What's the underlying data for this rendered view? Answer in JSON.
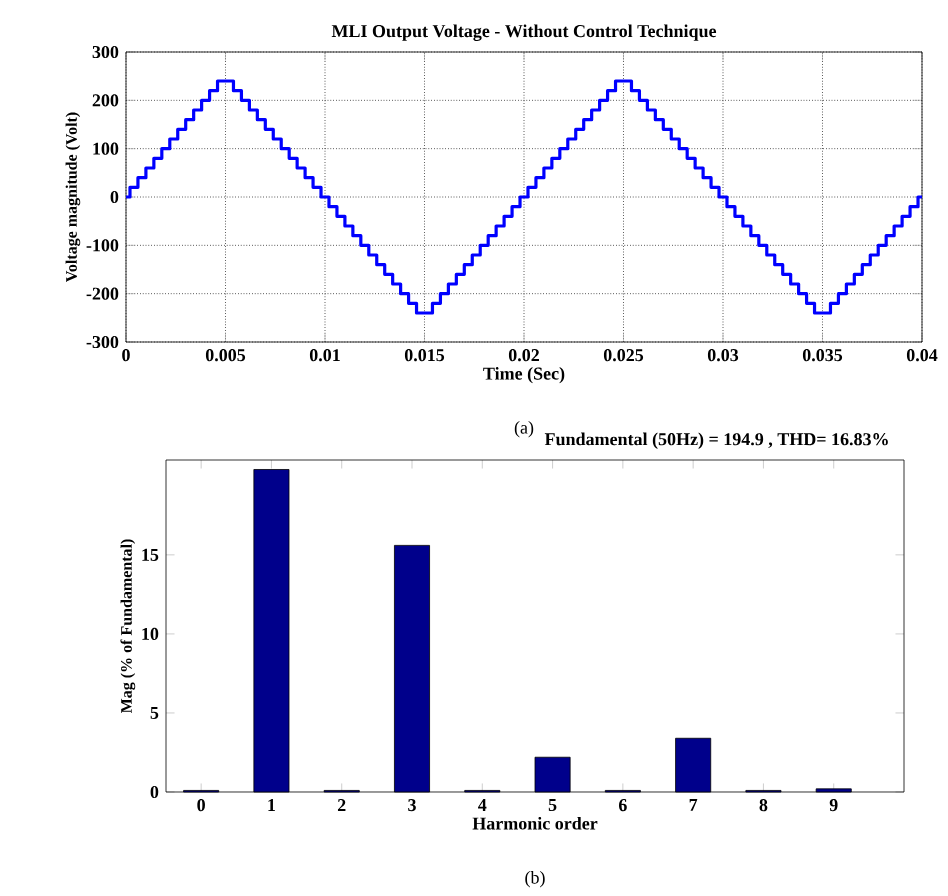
{
  "chart_data": [
    {
      "type": "step",
      "title": "MLI Output Voltage - Without Control Technique",
      "xlabel": "Time (Sec)",
      "ylabel": "Voltage magnitude (Volt)",
      "annotations": [
        "(a)"
      ],
      "grid": true,
      "color": "#0000ff",
      "x": [
        0,
        0.0002,
        0.0006,
        0.001,
        0.0014,
        0.0018,
        0.0022,
        0.0026,
        0.003,
        0.0034,
        0.0038,
        0.0042,
        0.0046,
        0.0054,
        0.0058,
        0.0062,
        0.0066,
        0.007,
        0.0074,
        0.0078,
        0.0082,
        0.0086,
        0.009,
        0.0094,
        0.0098,
        0.0102,
        0.0106,
        0.011,
        0.0114,
        0.0118,
        0.0122,
        0.0126,
        0.013,
        0.0134,
        0.0138,
        0.0142,
        0.0146,
        0.0154,
        0.0158,
        0.0162,
        0.0166,
        0.017,
        0.0174,
        0.0178,
        0.0182,
        0.0186,
        0.019,
        0.0194,
        0.0198,
        0.0202,
        0.0206,
        0.021,
        0.0214,
        0.0218,
        0.0222,
        0.0226,
        0.023,
        0.0234,
        0.0238,
        0.0242,
        0.0246,
        0.0254,
        0.0258,
        0.0262,
        0.0266,
        0.027,
        0.0274,
        0.0278,
        0.0282,
        0.0286,
        0.029,
        0.0294,
        0.0298,
        0.0302,
        0.0306,
        0.031,
        0.0314,
        0.0318,
        0.0322,
        0.0326,
        0.033,
        0.0334,
        0.0338,
        0.0342,
        0.0346,
        0.0354,
        0.0358,
        0.0362,
        0.0366,
        0.037,
        0.0374,
        0.0378,
        0.0382,
        0.0386,
        0.039,
        0.0394,
        0.0398,
        0.04
      ],
      "values": [
        0,
        20,
        40,
        60,
        80,
        100,
        120,
        140,
        160,
        180,
        200,
        220,
        240,
        220,
        200,
        180,
        160,
        140,
        120,
        100,
        80,
        60,
        40,
        20,
        0,
        -20,
        -40,
        -60,
        -80,
        -100,
        -120,
        -140,
        -160,
        -180,
        -200,
        -220,
        -240,
        -220,
        -200,
        -180,
        -160,
        -140,
        -120,
        -100,
        -80,
        -60,
        -40,
        -20,
        0,
        20,
        40,
        60,
        80,
        100,
        120,
        140,
        160,
        180,
        200,
        220,
        240,
        220,
        200,
        180,
        160,
        140,
        120,
        100,
        80,
        60,
        40,
        20,
        0,
        -20,
        -40,
        -60,
        -80,
        -100,
        -120,
        -140,
        -160,
        -180,
        -200,
        -220,
        -240,
        -220,
        -200,
        -180,
        -160,
        -140,
        -120,
        -100,
        -80,
        -60,
        -40,
        -20,
        0,
        0
      ],
      "xlim": [
        0,
        0.04
      ],
      "ylim": [
        -300,
        300
      ],
      "xticks": [
        0,
        0.005,
        0.01,
        0.015,
        0.02,
        0.025,
        0.03,
        0.035,
        0.04
      ],
      "yticks": [
        -300,
        -200,
        -100,
        0,
        100,
        200,
        300
      ]
    },
    {
      "type": "bar",
      "xlabel": "Harmonic order",
      "ylabel": "Mag (% of Fundamental)",
      "annotations": [
        "Fundamental (50Hz) = 194.9 , THD= 16.83%",
        "(b)"
      ],
      "color": "#00008b",
      "categories": [
        "0",
        "1",
        "2",
        "3",
        "4",
        "5",
        "6",
        "7",
        "8",
        "9"
      ],
      "values": [
        0.1,
        20.4,
        0.1,
        15.6,
        0.1,
        2.2,
        0.1,
        3.4,
        0.1,
        0.2
      ],
      "ylim": [
        0,
        21
      ],
      "yticks": [
        0,
        5,
        10,
        15
      ]
    }
  ]
}
